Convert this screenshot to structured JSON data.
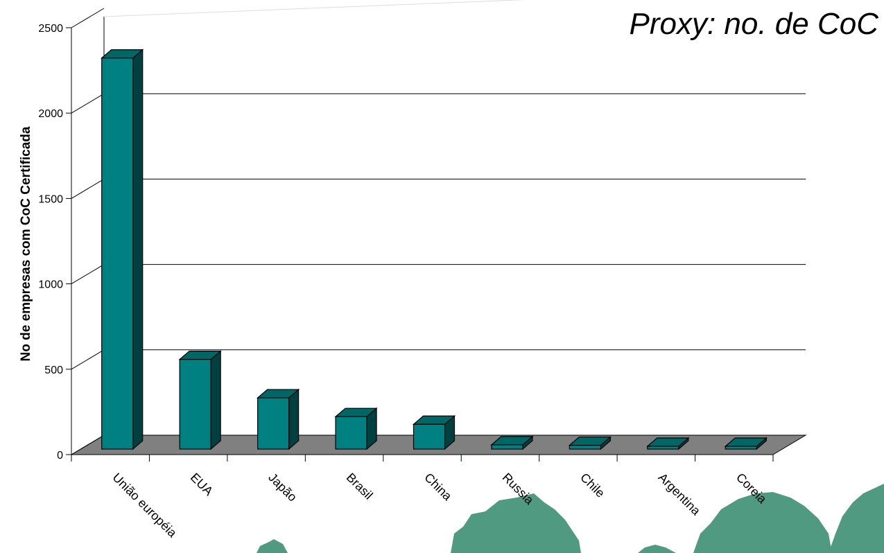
{
  "chart_data": {
    "type": "bar",
    "title": "Proxy: no. de CoC",
    "xlabel": "",
    "ylabel": "No de empresas com CoC Certificada",
    "categories": [
      "União européia",
      "EUA",
      "Japão",
      "Brasil",
      "China",
      "Russia",
      "Chile",
      "Argentina",
      "Coreia"
    ],
    "values": [
      2290,
      525,
      300,
      190,
      145,
      25,
      22,
      8,
      5
    ],
    "ylim": [
      0,
      2500
    ],
    "yticks": [
      0,
      500,
      1000,
      1500,
      2000,
      2500
    ],
    "grid": true,
    "style": "3d",
    "colors": {
      "bar_front": "#008080",
      "bar_side": "#004040",
      "bar_top": "#006666",
      "floor": "#808080"
    }
  },
  "decoration": "tree-silhouettes"
}
